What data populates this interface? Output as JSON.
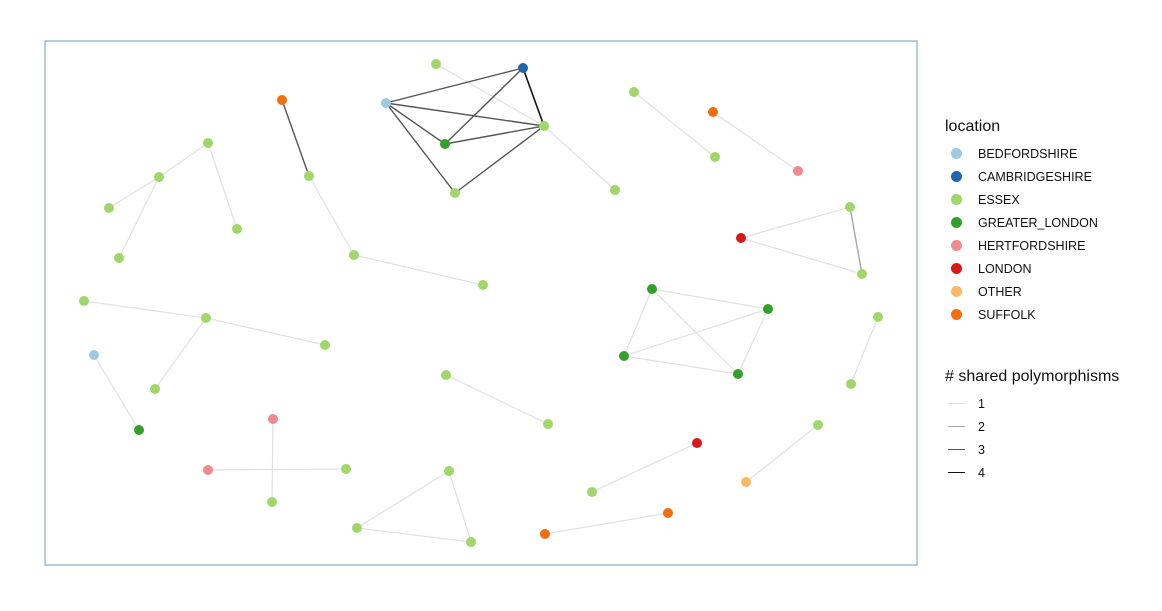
{
  "legend_location": {
    "title": "location",
    "items": [
      {
        "label": "BEDFORDSHIRE",
        "color": "#9ecae1"
      },
      {
        "label": "CAMBRIDGESHIRE",
        "color": "#2166ac"
      },
      {
        "label": "ESSEX",
        "color": "#a1d76a"
      },
      {
        "label": "GREATER_LONDON",
        "color": "#33a02c"
      },
      {
        "label": "HERTFORDSHIRE",
        "color": "#f08a8f"
      },
      {
        "label": "LONDON",
        "color": "#d7191c"
      },
      {
        "label": "OTHER",
        "color": "#fdb863"
      },
      {
        "label": "SUFFOLK",
        "color": "#f46d0e"
      }
    ]
  },
  "legend_edges": {
    "title": "# shared polymorphisms",
    "items": [
      {
        "label": "1",
        "color": "#e1e1e1"
      },
      {
        "label": "2",
        "color": "#a6a6a6"
      },
      {
        "label": "3",
        "color": "#555555"
      },
      {
        "label": "4",
        "color": "#111111"
      }
    ]
  },
  "panel_border_color": "#6b9bbd"
}
